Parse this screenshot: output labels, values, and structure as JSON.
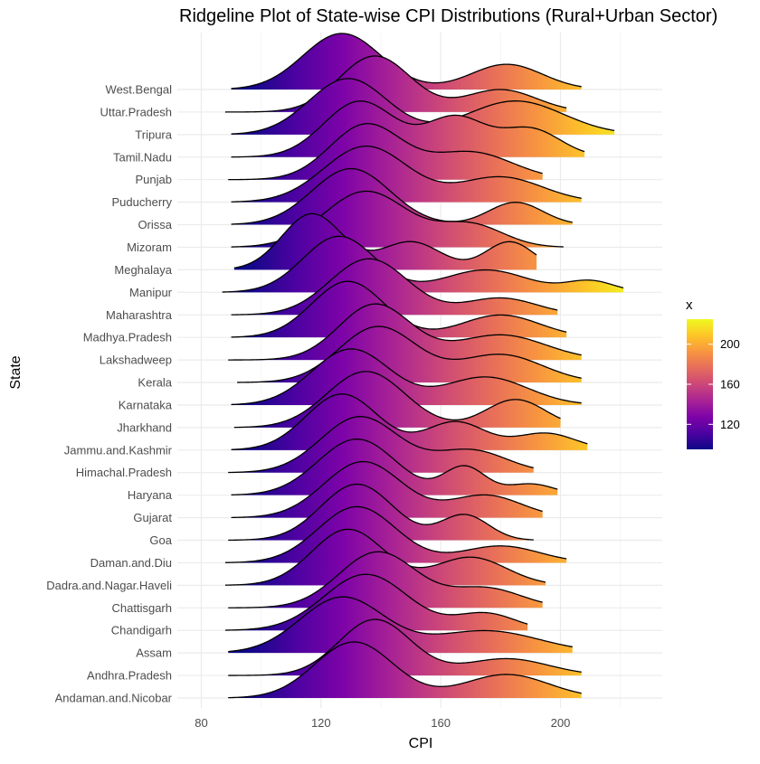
{
  "chart_data": {
    "type": "ridgeline",
    "title": "Ridgeline Plot of State-wise CPI Distributions (Rural+Urban Sector)",
    "xlabel": "CPI",
    "ylabel": "State",
    "xlim": [
      72,
      234
    ],
    "x_ticks": [
      80,
      120,
      160,
      200
    ],
    "grid": true,
    "legend": {
      "title": "x",
      "position": "right",
      "ticks": [
        120,
        160,
        200
      ],
      "range": [
        95,
        225
      ]
    },
    "states": [
      {
        "name": "Andaman.and.Nicobar",
        "range": [
          89,
          207
        ],
        "peaks": [
          [
            131,
            1.0,
            13
          ],
          [
            182,
            0.42,
            14
          ]
        ]
      },
      {
        "name": "Andhra.Pradesh",
        "range": [
          89,
          207
        ],
        "peaks": [
          [
            138,
            1.0,
            12
          ],
          [
            182,
            0.3,
            14
          ]
        ]
      },
      {
        "name": "Assam",
        "range": [
          89,
          204
        ],
        "peaks": [
          [
            127,
            1.0,
            14
          ],
          [
            175,
            0.4,
            18
          ]
        ]
      },
      {
        "name": "Chandigarh",
        "range": [
          88,
          189
        ],
        "peaks": [
          [
            135,
            1.0,
            14
          ],
          [
            175,
            0.3,
            10
          ]
        ]
      },
      {
        "name": "Chattisgarh",
        "range": [
          89,
          194
        ],
        "peaks": [
          [
            139,
            1.0,
            13
          ],
          [
            175,
            0.35,
            12
          ]
        ]
      },
      {
        "name": "Dadra.and.Nagar.Haveli",
        "range": [
          88,
          195
        ],
        "peaks": [
          [
            129,
            1.0,
            12
          ],
          [
            170,
            0.5,
            12
          ]
        ]
      },
      {
        "name": "Daman.and.Diu",
        "range": [
          88,
          202
        ],
        "peaks": [
          [
            132,
            1.0,
            13
          ],
          [
            180,
            0.3,
            13
          ]
        ]
      },
      {
        "name": "Goa",
        "range": [
          89,
          191
        ],
        "peaks": [
          [
            132,
            1.0,
            12
          ],
          [
            168,
            0.45,
            8
          ]
        ]
      },
      {
        "name": "Gujarat",
        "range": [
          90,
          194
        ],
        "peaks": [
          [
            134,
            1.0,
            13
          ],
          [
            175,
            0.4,
            12
          ]
        ]
      },
      {
        "name": "Haryana",
        "range": [
          90,
          199
        ],
        "peaks": [
          [
            132,
            1.0,
            13
          ],
          [
            168,
            0.5,
            7
          ],
          [
            190,
            0.2,
            8
          ]
        ]
      },
      {
        "name": "Himachal.Pradesh",
        "range": [
          89,
          191
        ],
        "peaks": [
          [
            133,
            1.0,
            13
          ],
          [
            170,
            0.4,
            12
          ]
        ]
      },
      {
        "name": "Jammu.and.Kashmir",
        "range": [
          90,
          209
        ],
        "peaks": [
          [
            127,
            1.0,
            12
          ],
          [
            165,
            0.5,
            10
          ],
          [
            195,
            0.3,
            10
          ]
        ]
      },
      {
        "name": "Jharkhand",
        "range": [
          91,
          200
        ],
        "peaks": [
          [
            135,
            1.0,
            13
          ],
          [
            185,
            0.5,
            10
          ]
        ]
      },
      {
        "name": "Karnataka",
        "range": [
          90,
          207
        ],
        "peaks": [
          [
            130,
            1.0,
            13
          ],
          [
            175,
            0.5,
            14
          ]
        ]
      },
      {
        "name": "Kerala",
        "range": [
          92,
          207
        ],
        "peaks": [
          [
            139,
            1.0,
            13
          ],
          [
            180,
            0.5,
            14
          ]
        ]
      },
      {
        "name": "Lakshadweep",
        "range": [
          89,
          207
        ],
        "peaks": [
          [
            138,
            1.0,
            12
          ],
          [
            180,
            0.45,
            15
          ]
        ]
      },
      {
        "name": "Madhya.Pradesh",
        "range": [
          90,
          202
        ],
        "peaks": [
          [
            129,
            1.0,
            12
          ],
          [
            180,
            0.4,
            13
          ]
        ]
      },
      {
        "name": "Maharashtra",
        "range": [
          90,
          199
        ],
        "peaks": [
          [
            136,
            1.0,
            13
          ],
          [
            180,
            0.3,
            12
          ]
        ]
      },
      {
        "name": "Manipur",
        "range": [
          87,
          221
        ],
        "peaks": [
          [
            126,
            1.0,
            12
          ],
          [
            175,
            0.4,
            14
          ],
          [
            210,
            0.2,
            8
          ]
        ]
      },
      {
        "name": "Meghalaya",
        "range": [
          91,
          192
        ],
        "peaks": [
          [
            117,
            1.0,
            10
          ],
          [
            150,
            0.5,
            10
          ],
          [
            183,
            0.5,
            8
          ]
        ]
      },
      {
        "name": "Mizoram",
        "range": [
          90,
          201
        ],
        "peaks": [
          [
            135,
            1.0,
            14
          ],
          [
            170,
            0.4,
            11
          ]
        ]
      },
      {
        "name": "Orissa",
        "range": [
          90,
          204
        ],
        "peaks": [
          [
            130,
            1.0,
            13
          ],
          [
            185,
            0.4,
            9
          ]
        ]
      },
      {
        "name": "Puducherry",
        "range": [
          90,
          207
        ],
        "peaks": [
          [
            135,
            1.0,
            14
          ],
          [
            180,
            0.45,
            14
          ]
        ]
      },
      {
        "name": "Punjab",
        "range": [
          89,
          194
        ],
        "peaks": [
          [
            135,
            1.0,
            12
          ],
          [
            170,
            0.5,
            14
          ]
        ]
      },
      {
        "name": "Tamil.Nadu",
        "range": [
          90,
          208
        ],
        "peaks": [
          [
            133,
            1.0,
            12
          ],
          [
            165,
            0.7,
            10
          ],
          [
            190,
            0.5,
            10
          ]
        ]
      },
      {
        "name": "Tripura",
        "range": [
          90,
          218
        ],
        "peaks": [
          [
            129,
            1.0,
            13
          ],
          [
            185,
            0.6,
            16
          ]
        ]
      },
      {
        "name": "Uttar.Pradesh",
        "range": [
          88,
          202
        ],
        "peaks": [
          [
            138,
            1.0,
            12
          ],
          [
            180,
            0.4,
            12
          ]
        ]
      },
      {
        "name": "West.Bengal",
        "range": [
          90,
          207
        ],
        "peaks": [
          [
            127,
            1.0,
            13
          ],
          [
            182,
            0.45,
            12
          ]
        ]
      }
    ]
  }
}
